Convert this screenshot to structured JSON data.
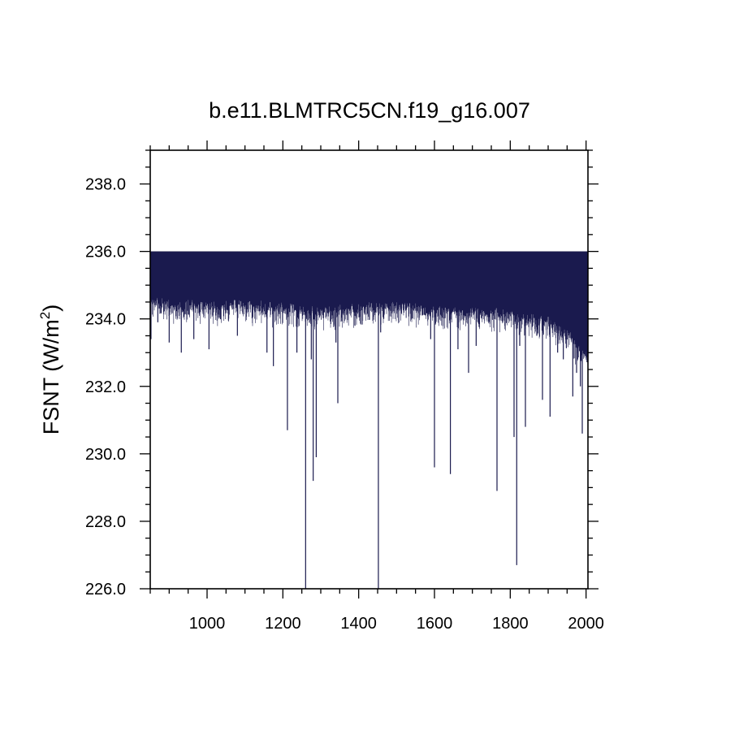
{
  "chart_data": {
    "type": "line",
    "title": "b.e11.BLMTRC5CN.f19_g16.007",
    "ylabel": "FSNT (W/m",
    "ylabel_sup": "2",
    "ylabel_close": ")",
    "xlabel": "",
    "xlim": [
      850,
      2005
    ],
    "ylim": [
      226.0,
      239.0
    ],
    "x_ticks": [
      1000,
      1200,
      1400,
      1600,
      1800,
      2000
    ],
    "x_tick_labels": [
      "1000",
      "1200",
      "1400",
      "1600",
      "1800",
      "2000"
    ],
    "y_ticks": [
      226,
      228,
      230,
      232,
      234,
      236,
      238
    ],
    "y_tick_labels": [
      "226.0",
      "228.0",
      "230.0",
      "232.0",
      "234.0",
      "236.0",
      "238.0"
    ],
    "grid": false,
    "series": [
      {
        "color": "#1a1a4e",
        "upper_envelope": 236.0,
        "x_start": 850,
        "x_end": 2005,
        "baseline_lower": [
          [
            850,
            234.8
          ],
          [
            900,
            234.6
          ],
          [
            1000,
            234.6
          ],
          [
            1100,
            234.6
          ],
          [
            1200,
            234.5
          ],
          [
            1300,
            234.4
          ],
          [
            1400,
            234.5
          ],
          [
            1500,
            234.6
          ],
          [
            1600,
            234.5
          ],
          [
            1700,
            234.4
          ],
          [
            1800,
            234.3
          ],
          [
            1900,
            234.1
          ],
          [
            1950,
            233.8
          ],
          [
            1980,
            233.3
          ],
          [
            2005,
            233.0
          ]
        ],
        "spikes": [
          {
            "x": 852,
            "y": 233.4
          },
          {
            "x": 870,
            "y": 233.9
          },
          {
            "x": 900,
            "y": 233.3
          },
          {
            "x": 932,
            "y": 233.0
          },
          {
            "x": 965,
            "y": 233.4
          },
          {
            "x": 1005,
            "y": 233.1
          },
          {
            "x": 1080,
            "y": 233.5
          },
          {
            "x": 1158,
            "y": 233.0
          },
          {
            "x": 1175,
            "y": 232.6
          },
          {
            "x": 1212,
            "y": 230.7
          },
          {
            "x": 1237,
            "y": 233.0
          },
          {
            "x": 1260,
            "y": 226.0
          },
          {
            "x": 1275,
            "y": 232.8
          },
          {
            "x": 1280,
            "y": 229.2
          },
          {
            "x": 1288,
            "y": 229.9
          },
          {
            "x": 1340,
            "y": 233.3
          },
          {
            "x": 1345,
            "y": 231.5
          },
          {
            "x": 1452,
            "y": 226.0
          },
          {
            "x": 1458,
            "y": 233.6
          },
          {
            "x": 1590,
            "y": 233.4
          },
          {
            "x": 1600,
            "y": 229.6
          },
          {
            "x": 1642,
            "y": 229.4
          },
          {
            "x": 1662,
            "y": 233.1
          },
          {
            "x": 1690,
            "y": 232.4
          },
          {
            "x": 1710,
            "y": 233.2
          },
          {
            "x": 1765,
            "y": 228.9
          },
          {
            "x": 1810,
            "y": 230.5
          },
          {
            "x": 1817,
            "y": 226.7
          },
          {
            "x": 1825,
            "y": 233.2
          },
          {
            "x": 1840,
            "y": 230.8
          },
          {
            "x": 1870,
            "y": 233.5
          },
          {
            "x": 1885,
            "y": 231.6
          },
          {
            "x": 1905,
            "y": 231.1
          },
          {
            "x": 1925,
            "y": 233.0
          },
          {
            "x": 1940,
            "y": 232.8
          },
          {
            "x": 1965,
            "y": 231.7
          },
          {
            "x": 1975,
            "y": 232.4
          },
          {
            "x": 1985,
            "y": 232.0
          },
          {
            "x": 1990,
            "y": 230.6
          },
          {
            "x": 1998,
            "y": 232.9
          }
        ]
      }
    ]
  }
}
